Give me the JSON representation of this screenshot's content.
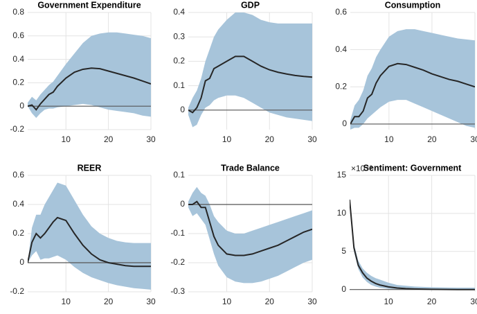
{
  "chart_data": [
    {
      "type": "line",
      "title": "Government Expenditure",
      "x": [
        1,
        2,
        3,
        4,
        5,
        6,
        7,
        8,
        10,
        12,
        14,
        16,
        18,
        20,
        22,
        24,
        26,
        28,
        30
      ],
      "values": [
        0,
        0.01,
        -0.03,
        0.02,
        0.06,
        0.1,
        0.12,
        0.17,
        0.24,
        0.29,
        0.315,
        0.325,
        0.32,
        0.3,
        0.28,
        0.26,
        0.24,
        0.215,
        0.19
      ],
      "band_lower": [
        0,
        -0.06,
        -0.1,
        -0.06,
        -0.03,
        -0.02,
        -0.02,
        -0.01,
        0,
        0.01,
        0.02,
        0.01,
        -0.01,
        -0.03,
        -0.04,
        -0.05,
        -0.06,
        -0.08,
        -0.09
      ],
      "band_upper": [
        0.03,
        0.08,
        0.05,
        0.1,
        0.14,
        0.18,
        0.21,
        0.26,
        0.36,
        0.45,
        0.54,
        0.6,
        0.62,
        0.63,
        0.63,
        0.62,
        0.61,
        0.6,
        0.58
      ],
      "color": "#262626",
      "band_color": "#a7c4da",
      "xlim": [
        1,
        30
      ],
      "xticks": [
        10,
        20,
        30
      ],
      "ylim": [
        -0.2,
        0.8
      ],
      "yticks": [
        -0.2,
        0,
        0.2,
        0.4,
        0.6,
        0.8
      ],
      "grid": true,
      "zero_line": true
    },
    {
      "type": "line",
      "title": "GDP",
      "x": [
        1,
        2,
        3,
        4,
        5,
        6,
        7,
        8,
        10,
        12,
        14,
        16,
        18,
        20,
        22,
        24,
        26,
        28,
        30
      ],
      "values": [
        0,
        -0.01,
        0.01,
        0.05,
        0.12,
        0.13,
        0.17,
        0.18,
        0.2,
        0.22,
        0.22,
        0.2,
        0.18,
        0.165,
        0.155,
        0.148,
        0.142,
        0.138,
        0.135
      ],
      "band_lower": [
        -0.02,
        -0.07,
        -0.06,
        -0.02,
        0.01,
        0.02,
        0.04,
        0.05,
        0.06,
        0.06,
        0.05,
        0.03,
        0.01,
        -0.01,
        -0.02,
        -0.03,
        -0.035,
        -0.04,
        -0.045
      ],
      "band_upper": [
        0.01,
        0.05,
        0.08,
        0.13,
        0.2,
        0.25,
        0.3,
        0.33,
        0.37,
        0.4,
        0.4,
        0.39,
        0.37,
        0.36,
        0.355,
        0.355,
        0.355,
        0.355,
        0.355
      ],
      "color": "#262626",
      "band_color": "#a7c4da",
      "xlim": [
        1,
        30
      ],
      "xticks": [
        10,
        20,
        30
      ],
      "ylim": [
        -0.08,
        0.4
      ],
      "yticks": [
        0,
        0.1,
        0.2,
        0.3,
        0.4
      ],
      "grid": true,
      "zero_line": true
    },
    {
      "type": "line",
      "title": "Consumption",
      "x": [
        1,
        2,
        3,
        4,
        5,
        6,
        7,
        8,
        10,
        12,
        14,
        16,
        18,
        20,
        22,
        24,
        26,
        28,
        30
      ],
      "values": [
        0,
        0.04,
        0.04,
        0.07,
        0.14,
        0.16,
        0.22,
        0.26,
        0.31,
        0.325,
        0.32,
        0.305,
        0.29,
        0.27,
        0.255,
        0.24,
        0.23,
        0.215,
        0.2
      ],
      "band_lower": [
        -0.03,
        -0.02,
        -0.02,
        0,
        0.03,
        0.05,
        0.07,
        0.09,
        0.12,
        0.13,
        0.13,
        0.11,
        0.09,
        0.07,
        0.05,
        0.03,
        0.01,
        -0.01,
        -0.02
      ],
      "band_upper": [
        0.02,
        0.1,
        0.13,
        0.18,
        0.26,
        0.3,
        0.36,
        0.4,
        0.47,
        0.5,
        0.51,
        0.51,
        0.5,
        0.49,
        0.48,
        0.47,
        0.46,
        0.455,
        0.45
      ],
      "color": "#262626",
      "band_color": "#a7c4da",
      "xlim": [
        1,
        30
      ],
      "xticks": [
        10,
        20,
        30
      ],
      "ylim": [
        -0.03,
        0.6
      ],
      "yticks": [
        0,
        0.2,
        0.4,
        0.6
      ],
      "grid": true,
      "zero_line": true
    },
    {
      "type": "line",
      "title": "REER",
      "x": [
        1,
        2,
        3,
        4,
        5,
        6,
        7,
        8,
        10,
        12,
        14,
        16,
        18,
        20,
        22,
        24,
        26,
        28,
        30
      ],
      "values": [
        0,
        0.14,
        0.2,
        0.17,
        0.2,
        0.24,
        0.28,
        0.31,
        0.29,
        0.2,
        0.12,
        0.06,
        0.02,
        0,
        -0.01,
        -0.02,
        -0.025,
        -0.025,
        -0.025
      ],
      "band_lower": [
        0,
        0.05,
        0.08,
        0.02,
        0.03,
        0.03,
        0.04,
        0.05,
        0.02,
        -0.03,
        -0.07,
        -0.1,
        -0.12,
        -0.14,
        -0.155,
        -0.165,
        -0.175,
        -0.18,
        -0.185
      ],
      "band_upper": [
        0,
        0.24,
        0.33,
        0.33,
        0.4,
        0.45,
        0.5,
        0.55,
        0.53,
        0.43,
        0.33,
        0.25,
        0.2,
        0.17,
        0.15,
        0.14,
        0.135,
        0.135,
        0.135
      ],
      "color": "#262626",
      "band_color": "#a7c4da",
      "xlim": [
        1,
        30
      ],
      "xticks": [
        10,
        20,
        30
      ],
      "ylim": [
        -0.2,
        0.6
      ],
      "yticks": [
        -0.2,
        0,
        0.2,
        0.4,
        0.6
      ],
      "grid": true,
      "zero_line": true
    },
    {
      "type": "line",
      "title": "Trade Balance",
      "x": [
        1,
        2,
        3,
        4,
        5,
        6,
        7,
        8,
        10,
        12,
        14,
        16,
        18,
        20,
        22,
        24,
        26,
        28,
        30
      ],
      "values": [
        0,
        0,
        0.01,
        -0.01,
        -0.01,
        -0.06,
        -0.11,
        -0.14,
        -0.17,
        -0.175,
        -0.175,
        -0.17,
        -0.16,
        -0.15,
        -0.14,
        -0.125,
        -0.11,
        -0.095,
        -0.085
      ],
      "band_lower": [
        -0.01,
        -0.04,
        -0.03,
        -0.05,
        -0.07,
        -0.12,
        -0.17,
        -0.21,
        -0.25,
        -0.265,
        -0.27,
        -0.27,
        -0.265,
        -0.255,
        -0.245,
        -0.23,
        -0.215,
        -0.2,
        -0.19
      ],
      "band_upper": [
        0.01,
        0.04,
        0.06,
        0.04,
        0.03,
        0,
        -0.04,
        -0.06,
        -0.09,
        -0.1,
        -0.1,
        -0.09,
        -0.08,
        -0.07,
        -0.06,
        -0.05,
        -0.04,
        -0.03,
        -0.02
      ],
      "color": "#262626",
      "band_color": "#a7c4da",
      "xlim": [
        1,
        30
      ],
      "xticks": [
        10,
        20,
        30
      ],
      "ylim": [
        -0.3,
        0.1
      ],
      "yticks": [
        -0.3,
        -0.2,
        -0.1,
        0,
        0.1
      ],
      "grid": true,
      "zero_line": true
    },
    {
      "type": "line",
      "title": "Sentiment: Government",
      "y_multiplier": "×10⁻³",
      "x": [
        1,
        2,
        3,
        4,
        5,
        6,
        7,
        8,
        10,
        12,
        14,
        16,
        18,
        20,
        22,
        24,
        26,
        28,
        30
      ],
      "values": [
        11.8,
        5.5,
        3.2,
        2.2,
        1.5,
        1.1,
        0.8,
        0.6,
        0.35,
        0.2,
        0.12,
        0.08,
        0.05,
        0.03,
        0.02,
        0.01,
        0,
        0,
        0
      ],
      "band_lower": [
        11.5,
        5,
        2.7,
        1.6,
        1,
        0.6,
        0.4,
        0.25,
        0.1,
        0.05,
        0.02,
        0,
        0,
        0,
        0,
        0,
        0,
        0,
        0
      ],
      "band_upper": [
        12,
        6,
        3.8,
        2.8,
        2.2,
        1.8,
        1.5,
        1.3,
        0.9,
        0.6,
        0.5,
        0.4,
        0.35,
        0.3,
        0.28,
        0.26,
        0.25,
        0.25,
        0.25
      ],
      "color": "#262626",
      "band_color": "#a7c4da",
      "xlim": [
        1,
        30
      ],
      "xticks": [
        10,
        20,
        30
      ],
      "ylim": [
        -0.3,
        15
      ],
      "yticks": [
        0,
        5,
        10,
        15
      ],
      "grid": true,
      "zero_line": true
    }
  ]
}
